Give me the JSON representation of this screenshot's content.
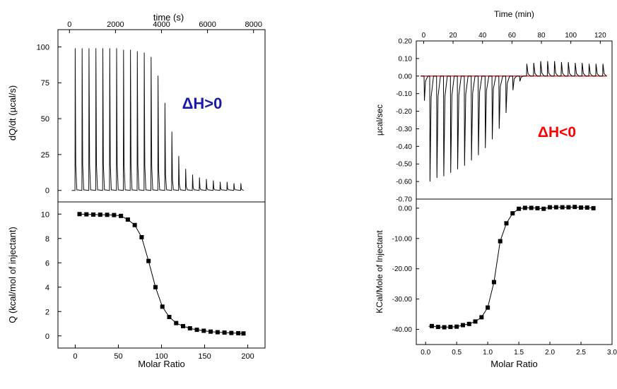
{
  "chart_data": [
    {
      "type": "line",
      "panel": "top-left",
      "xlabel": "time (s)",
      "ylabel": "dQ/dt (µcal/s)",
      "annotation": "ΔH>0",
      "annotation_color": "#1a1aa8",
      "xlim": [
        -500,
        8500
      ],
      "ylim": [
        -8,
        112
      ],
      "xticks": [
        0,
        2000,
        4000,
        6000,
        8000
      ],
      "yticks": [
        0,
        25,
        50,
        75,
        100
      ],
      "baseline": 0,
      "series": [
        {
          "x": [
            250,
            550,
            850,
            1150,
            1450,
            1750,
            2050,
            2350,
            2650,
            2950,
            3250,
            3550,
            3850,
            4150,
            4450,
            4750,
            5050,
            5350,
            5650,
            5950,
            6250,
            6550,
            6850,
            7150,
            7450
          ],
          "values": [
            99,
            99,
            99,
            99,
            99,
            99,
            99,
            98,
            98,
            97,
            96,
            93,
            80,
            61,
            41,
            24,
            15,
            11,
            9,
            8,
            7,
            6,
            6,
            5,
            5
          ]
        }
      ]
    },
    {
      "type": "scatter",
      "panel": "bottom-left",
      "xlabel": "Molar Ratio",
      "ylabel": "Q (kcal/mol of injectant)",
      "xlim": [
        -20,
        220
      ],
      "ylim": [
        -1,
        11
      ],
      "xticks": [
        0,
        50,
        100,
        150,
        200
      ],
      "yticks": [
        0,
        2,
        4,
        6,
        8,
        10
      ],
      "series": [
        {
          "x": [
            5,
            13,
            21,
            29,
            37,
            45,
            53,
            61,
            69,
            77,
            85,
            93,
            101,
            109,
            117,
            125,
            133,
            141,
            149,
            157,
            165,
            173,
            181,
            189,
            195
          ],
          "values": [
            10.0,
            9.98,
            9.96,
            9.95,
            9.94,
            9.92,
            9.85,
            9.55,
            9.1,
            8.1,
            6.15,
            4.0,
            2.4,
            1.55,
            1.05,
            0.8,
            0.62,
            0.5,
            0.42,
            0.35,
            0.3,
            0.27,
            0.24,
            0.22,
            0.2
          ]
        }
      ]
    },
    {
      "type": "line",
      "panel": "top-right",
      "xlabel": "Time (min)",
      "ylabel": "µcal/sec",
      "annotation": "ΔH<0",
      "annotation_color": "#ff0000",
      "xlim": [
        -5,
        128
      ],
      "ylim": [
        -0.7,
        0.2
      ],
      "xticks": [
        0,
        20,
        40,
        60,
        80,
        100,
        120
      ],
      "yticks": [
        0.2,
        0.1,
        0.0,
        -0.1,
        -0.2,
        -0.3,
        -0.4,
        -0.5,
        -0.6,
        -0.7
      ],
      "ytick_labels": [
        "0.20",
        "0.10",
        "0.00",
        "-0.10",
        "-0.20",
        "-0.30",
        "-0.40",
        "-0.50",
        "-0.60",
        "-0.70"
      ],
      "baseline": 0,
      "baseline_color": "#ff0000",
      "series": [
        {
          "x": [
            0.5,
            4.3,
            9,
            13.7,
            18.4,
            23.1,
            27.8,
            32.5,
            37.2,
            41.9,
            46.6,
            51.3,
            56,
            60.7,
            65.4,
            70.1,
            74.8,
            79.5,
            84.2,
            88.9,
            93.6,
            98.3,
            103,
            107.7,
            112.4,
            117.1,
            121.8
          ],
          "values": [
            -0.14,
            -0.6,
            -0.58,
            -0.57,
            -0.55,
            -0.53,
            -0.51,
            -0.48,
            -0.45,
            -0.41,
            -0.36,
            -0.3,
            -0.21,
            -0.08,
            -0.03,
            0.07,
            0.075,
            0.085,
            0.085,
            0.085,
            0.08,
            0.08,
            0.075,
            0.075,
            0.07,
            0.07,
            0.07
          ]
        }
      ]
    },
    {
      "type": "scatter",
      "panel": "bottom-right",
      "xlabel": "Molar Ratio",
      "ylabel": "KCal/Mole of Injectant",
      "xlim": [
        -0.15,
        3.0
      ],
      "ylim": [
        -45,
        3
      ],
      "xticks": [
        0.0,
        0.5,
        1.0,
        1.5,
        2.0,
        2.5,
        3.0
      ],
      "xtick_labels": [
        "0.0",
        "0.5",
        "1.0",
        "1.5",
        "2.0",
        "2.5",
        "3.0"
      ],
      "yticks": [
        0,
        -10,
        -20,
        -30,
        -40
      ],
      "ytick_labels": [
        "0.00",
        "-10.00",
        "-20.00",
        "-30.00",
        "-40.00"
      ],
      "series": [
        {
          "x": [
            0.1,
            0.2,
            0.3,
            0.4,
            0.5,
            0.6,
            0.7,
            0.8,
            0.9,
            1.0,
            1.1,
            1.2,
            1.3,
            1.4,
            1.5,
            1.6,
            1.7,
            1.8,
            1.9,
            2.0,
            2.1,
            2.2,
            2.3,
            2.4,
            2.5,
            2.6,
            2.7
          ],
          "values": [
            -38.9,
            -39.2,
            -39.3,
            -39.2,
            -39.1,
            -38.6,
            -38.2,
            -37.4,
            -36.0,
            -32.8,
            -24.4,
            -10.9,
            -5.0,
            -1.7,
            -0.2,
            0.1,
            0.1,
            0.0,
            -0.2,
            0.3,
            0.3,
            0.3,
            0.3,
            0.4,
            0.2,
            0.2,
            0.0
          ]
        }
      ]
    }
  ]
}
